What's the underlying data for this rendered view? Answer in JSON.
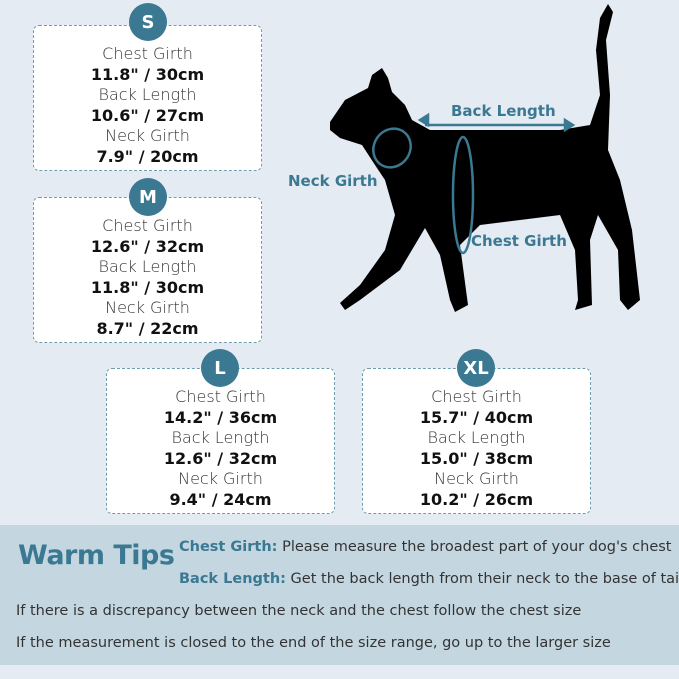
{
  "sizes": [
    {
      "size": "S",
      "chest_label": "Chest Girth",
      "chest": "11.8\" / 30cm",
      "back_label": "Back Length",
      "back": "10.6\" / 27cm",
      "neck_label": "Neck Girth",
      "neck": "7.9\" / 20cm"
    },
    {
      "size": "M",
      "chest_label": "Chest Girth",
      "chest": "12.6\" / 32cm",
      "back_label": "Back Length",
      "back": "11.8\" / 30cm",
      "neck_label": "Neck Girth",
      "neck": "8.7\" / 22cm"
    },
    {
      "size": "L",
      "chest_label": "Chest Girth",
      "chest": "14.2\" / 36cm",
      "back_label": "Back Length",
      "back": "12.6\" / 32cm",
      "neck_label": "Neck Girth",
      "neck": "9.4\" / 24cm"
    },
    {
      "size": "XL",
      "chest_label": "Chest Girth",
      "chest": "15.7\" / 40cm",
      "back_label": "Back Length",
      "back": "15.0\" / 38cm",
      "neck_label": "Neck Girth",
      "neck": "10.2\" / 26cm"
    }
  ],
  "diagram": {
    "back_length": "Back Length",
    "neck_girth": "Neck Girth",
    "chest_girth": "Chest Girth"
  },
  "tips": {
    "title": "Warm Tips",
    "chest_key": "Chest Girth:",
    "chest_text": " Please measure the broadest part of your dog's chest",
    "back_key": "Back Length:",
    "back_text": " Get the back length from their neck to the base of tail",
    "line1": "If there is a discrepancy between the neck and the chest follow the chest size",
    "line2": "If the measurement is closed to the end of the size range, go up to the larger size"
  },
  "colors": {
    "accent": "#3b7891",
    "background": "#e4ebf2",
    "band": "#c4d7e1"
  }
}
